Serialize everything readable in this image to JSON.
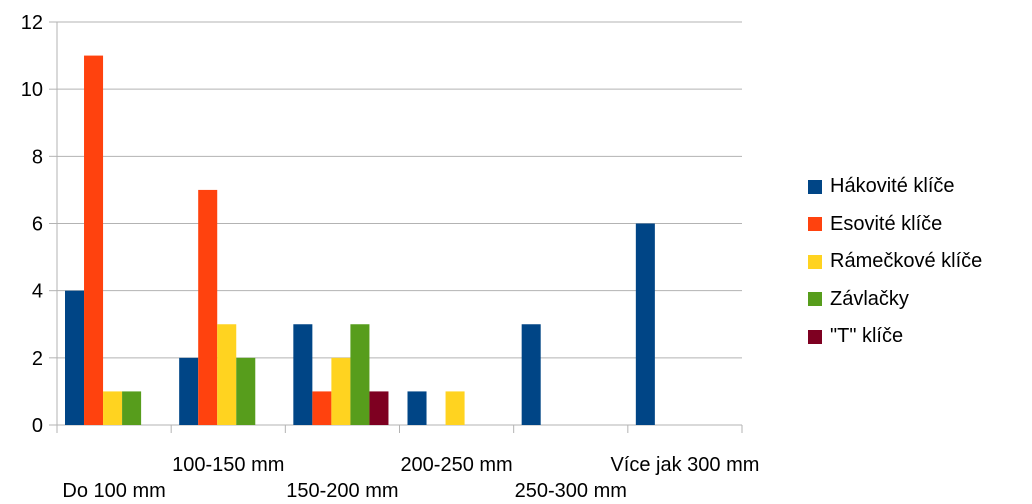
{
  "chart_data": {
    "type": "bar",
    "categories": [
      "Do 100 mm",
      "100-150 mm",
      "150-200 mm",
      "200-250 mm",
      "250-300 mm",
      "Více jak 300 mm"
    ],
    "series": [
      {
        "name": "Hákovité klíče",
        "color": "#004586",
        "values": [
          4,
          2,
          3,
          1,
          3,
          6
        ]
      },
      {
        "name": "Esovité klíče",
        "color": "#ff420e",
        "values": [
          11,
          7,
          1,
          0,
          0,
          0
        ]
      },
      {
        "name": "Rámečkové klíče",
        "color": "#ffd320",
        "values": [
          1,
          3,
          2,
          1,
          0,
          0
        ]
      },
      {
        "name": "Závlačky",
        "color": "#579d1c",
        "values": [
          1,
          2,
          3,
          0,
          0,
          0
        ]
      },
      {
        "name": "\"T\" klíče",
        "color": "#7e0021",
        "values": [
          0,
          0,
          1,
          0,
          0,
          0
        ]
      }
    ],
    "yticks": [
      "0",
      "2",
      "4",
      "6",
      "8",
      "10",
      "12"
    ],
    "ylim": [
      0,
      12
    ],
    "grid": true,
    "legend_position": "right"
  }
}
